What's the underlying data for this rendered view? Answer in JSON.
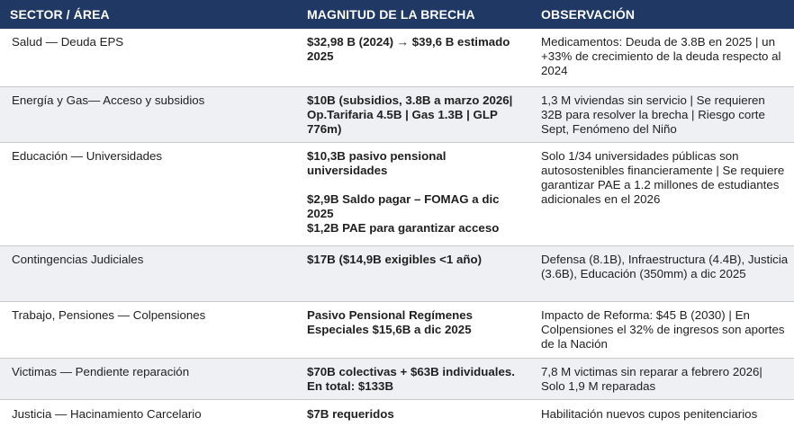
{
  "header": {
    "col1": "SECTOR / ÁREA",
    "col2": "MAGNITUD DE LA BRECHA",
    "col3": "OBSERVACIÓN"
  },
  "rows": [
    {
      "sector": "Salud — Deuda EPS",
      "magnitude": [
        "$32,98 B (2024) → $39,6 B estimado 2025"
      ],
      "observation": "Medicamentos: Deuda de 3.8B en 2025 | un +33% de crecimiento de la deuda respecto al 2024"
    },
    {
      "sector": "Energía y Gas— Acceso y subsidios",
      "magnitude": [
        "$10B (subsidios, 3.8B a marzo 2026| Op.Tarifaria 4.5B | Gas 1.3B | GLP 776m)"
      ],
      "observation": "1,3 M viviendas sin servicio | Se requieren 32B para resolver la brecha | Riesgo corte Sept, Fenómeno del Niño"
    },
    {
      "sector": "Educación — Universidades",
      "magnitude": [
        "$10,3B pasivo pensional universidades",
        "$2,9B Saldo pagar – FOMAG a dic 2025",
        "$1,2B PAE para garantizar acceso"
      ],
      "observation": "Solo 1/34 universidades públicas son autosostenibles financieramente | Se requiere garantizar PAE a 1.2 millones de estudiantes adicionales en el 2026"
    },
    {
      "sector": "Contingencias Judiciales",
      "magnitude": [
        "$17B ($14,9B exigibles <1 año)"
      ],
      "observation": "Defensa (8.1B), Infraestructura (4.4B), Justicia (3.6B), Educación (350mm) a dic 2025"
    },
    {
      "sector": "Trabajo, Pensiones — Colpensiones",
      "magnitude": [
        "Pasivo Pensional Regímenes Especiales $15,6B a dic 2025"
      ],
      "observation": "Impacto de Reforma: $45 B (2030) | En Colpensiones el 32% de ingresos son aportes de la Nación"
    },
    {
      "sector": "Victimas — Pendiente reparación",
      "magnitude": [
        "$70B colectivas + $63B individuales. En total: $133B"
      ],
      "observation": "7,8 M victimas sin reparar a febrero 2026| Solo 1,9 M reparadas"
    },
    {
      "sector": "Justicia — Hacinamiento Carcelario",
      "magnitude": [
        "$7B requeridos"
      ],
      "observation": "Habilitación nuevos cupos penitenciarios"
    }
  ]
}
